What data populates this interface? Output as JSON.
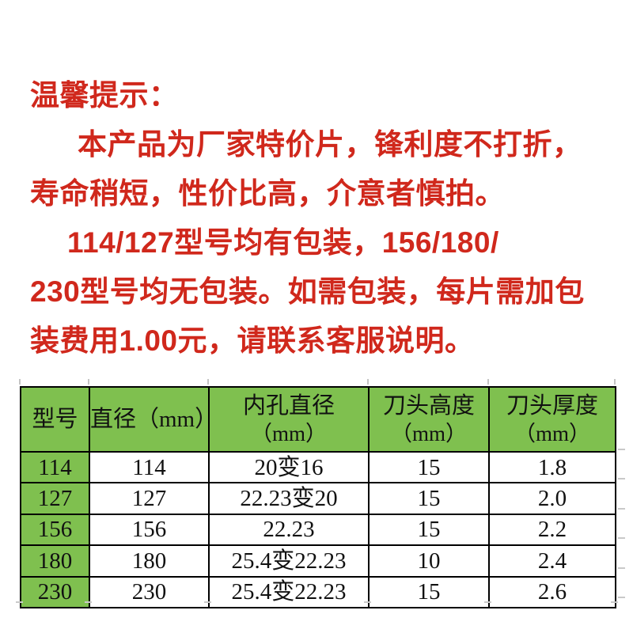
{
  "notice": {
    "text_color": "#d0281c",
    "lines": [
      "温馨提示：",
      "本产品为厂家特价片，锋利度不打折，",
      "寿命稍短，性价比高，介意者慎拍。",
      "114/127型号均有包装，156/180/",
      "230型号均无包装。如需包装，每片需加包",
      "装费用1.00元，请联系客服说明。"
    ]
  },
  "spec_table": {
    "header_bg_color": "#7fc04f",
    "model_col_bg_color": "#7fc04f",
    "border_color": "#000000",
    "headers": [
      {
        "line1": "型号",
        "line2": ""
      },
      {
        "line1": "直径（mm）",
        "line2": ""
      },
      {
        "line1": "内孔直径",
        "line2": "（mm）"
      },
      {
        "line1": "刀头高度",
        "line2": "（mm）"
      },
      {
        "line1": "刀头厚度",
        "line2": "（mm）"
      }
    ],
    "rows": [
      {
        "model": "114",
        "diameter": "114",
        "bore": "20变16",
        "height": "15",
        "thickness": "1.8"
      },
      {
        "model": "127",
        "diameter": "127",
        "bore": "22.23变20",
        "height": "15",
        "thickness": "2.0"
      },
      {
        "model": "156",
        "diameter": "156",
        "bore": "22.23",
        "height": "15",
        "thickness": "2.2"
      },
      {
        "model": "180",
        "diameter": "180",
        "bore": "25.4变22.23",
        "height": "10",
        "thickness": "2.4"
      },
      {
        "model": "230",
        "diameter": "230",
        "bore": "25.4变22.23",
        "height": "15",
        "thickness": "2.6"
      }
    ]
  }
}
